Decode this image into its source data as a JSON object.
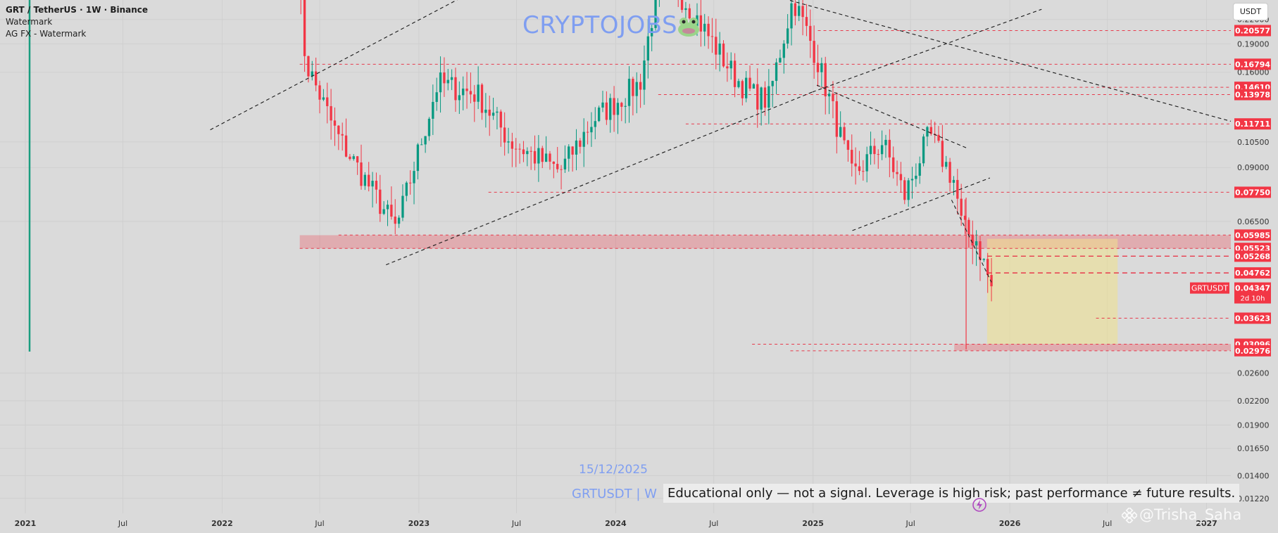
{
  "legend": {
    "symbol": "GRT / TetherUS · 1W · Binance",
    "line2": "Watermark",
    "line3": "AG FX - Watermark"
  },
  "watermark": {
    "brand": "CRYPTOJOBS",
    "date": "15/12/2025",
    "ticker": "GRTUSDT | W",
    "disclaimer": "Educational only — not a signal. Leverage is high risk; past performance ≠ future results.",
    "credit": "@Trisha_Saha"
  },
  "currency_button": "USDT",
  "colors": {
    "background": "#dadada",
    "up": "#089981",
    "down": "#f23645",
    "level_line": "#e83a4c",
    "level_label_bg": "#f23645",
    "support_zone": "rgba(242,54,69,0.28)",
    "target_box": "rgba(240,226,140,0.55)",
    "watermark_text": "#7f9ef1",
    "trendline": "#1a1a1a"
  },
  "icons": [
    "frog-icon",
    "flash-icon",
    "binance-logo-icon"
  ],
  "chart_data": {
    "type": "candlestick",
    "symbol": "GRTUSDT",
    "timeframe": "1W",
    "exchange": "Binance",
    "y_scale": "log",
    "ylim": [
      0.01115,
      0.2475
    ],
    "xlim": [
      "2020-11-15",
      "2027-02-15"
    ],
    "x_ticks": [
      "2021",
      "Jul",
      "2022",
      "Jul",
      "2023",
      "Jul",
      "2024",
      "Jul",
      "2025",
      "Jul",
      "2026",
      "Jul",
      "2027"
    ],
    "x_tick_dates": [
      "2021-01-01",
      "2021-07-01",
      "2022-01-01",
      "2022-07-01",
      "2023-01-01",
      "2023-07-01",
      "2024-01-01",
      "2024-07-01",
      "2025-01-01",
      "2025-07-01",
      "2026-01-01",
      "2026-07-01",
      "2027-01-01"
    ],
    "y_ticks": [
      "0.22000",
      "0.19000",
      "0.16000",
      "0.10500",
      "0.09000",
      "0.06500",
      "0.02600",
      "0.02200",
      "0.01900",
      "0.01650",
      "0.01400",
      "0.01220"
    ],
    "last_price": {
      "label": "GRTUSDT",
      "value": "0.04347",
      "countdown": "2d 10h"
    },
    "levels": [
      {
        "value": "0.20577",
        "from": "2025-01-10"
      },
      {
        "value": "0.16794",
        "from": "2022-05-25"
      },
      {
        "value": "0.14610",
        "from": "2025-01-15"
      },
      {
        "value": "0.13978",
        "from": "2024-03-20"
      },
      {
        "value": "0.11711",
        "from": "2024-05-10"
      },
      {
        "value": "0.07750",
        "from": "2023-05-10"
      },
      {
        "value": "0.05985",
        "from": "2022-08-05"
      },
      {
        "value": "0.05523",
        "from": "2022-05-25"
      },
      {
        "value": "0.05268",
        "from": "2025-11-20"
      },
      {
        "value": "0.04762",
        "from": "2025-11-20"
      },
      {
        "value": "0.03623",
        "from": "2026-06-10"
      },
      {
        "value": "0.03096",
        "from": "2024-09-10"
      },
      {
        "value": "0.02976",
        "from": "2024-11-20"
      }
    ],
    "support_zone": {
      "from": "2022-05-25",
      "to": "2027-02-15",
      "top": 0.0598,
      "bottom": 0.0552
    },
    "low_zone": {
      "from": "2025-09-20",
      "to": "2027-02-15",
      "top": 0.031,
      "bottom": 0.0298
    },
    "target_box": {
      "from": "2025-11-20",
      "to": "2026-07-20",
      "top": 0.0585,
      "bottom": 0.031
    },
    "trendlines": [
      {
        "from": [
          "2021-12-10",
          0.113
        ],
        "to": [
          "2023-04-10",
          0.26
        ]
      },
      {
        "from": [
          "2022-11-01",
          0.05
        ],
        "to": [
          "2024-12-31",
          0.142
        ]
      },
      {
        "from": [
          "2024-12-31",
          0.142
        ],
        "to": [
          "2026-03-01",
          0.234
        ]
      },
      {
        "from": [
          "2024-09-01",
          0.265
        ],
        "to": [
          "2027-02-15",
          0.119
        ]
      },
      {
        "from": [
          "2025-01-08",
          0.148
        ],
        "to": [
          "2025-10-15",
          0.101
        ]
      },
      {
        "from": [
          "2025-03-15",
          0.0615
        ],
        "to": [
          "2025-11-25",
          0.0845
        ]
      },
      {
        "from": [
          "2025-09-15",
          0.074
        ],
        "to": [
          "2025-11-28",
          0.045
        ]
      }
    ],
    "anchors": [
      [
        "2020-11-20",
        0.04,
        0.18
      ],
      [
        "2022-05-20",
        0.3,
        0.25
      ],
      [
        "2022-06-05",
        0.17,
        0.15
      ],
      [
        "2022-08-01",
        0.11,
        0.115
      ],
      [
        "2022-11-20",
        0.062,
        0.058
      ],
      [
        "2023-02-05",
        0.15,
        0.2
      ],
      [
        "2023-04-20",
        0.14,
        0.15
      ],
      [
        "2023-06-20",
        0.105,
        0.1
      ],
      [
        "2023-09-20",
        0.088,
        0.086
      ],
      [
        "2023-11-20",
        0.12,
        0.125
      ],
      [
        "2024-02-15",
        0.15,
        0.16
      ],
      [
        "2024-03-25",
        0.3,
        0.33
      ],
      [
        "2024-05-15",
        0.24,
        0.25
      ],
      [
        "2024-08-10",
        0.155,
        0.15
      ],
      [
        "2024-09-10",
        0.14,
        0.145
      ],
      [
        "2024-10-10",
        0.135,
        0.14
      ],
      [
        "2024-11-25",
        0.25,
        0.3
      ],
      [
        "2025-01-05",
        0.18,
        0.17
      ],
      [
        "2025-02-01",
        0.135,
        0.14
      ],
      [
        "2025-03-15",
        0.085,
        0.082
      ],
      [
        "2025-05-10",
        0.105,
        0.11
      ],
      [
        "2025-06-20",
        0.076,
        0.075
      ],
      [
        "2025-08-05",
        0.11,
        0.105
      ],
      [
        "2025-09-20",
        0.083,
        0.085
      ],
      [
        "2025-10-05",
        0.062,
        0.062
      ],
      [
        "2025-11-01",
        0.058,
        0.058
      ],
      [
        "2025-11-28",
        0.0435,
        0.0435
      ]
    ],
    "extreme_wicks": [
      {
        "date": "2025-10-12",
        "low": 0.03
      }
    ]
  }
}
